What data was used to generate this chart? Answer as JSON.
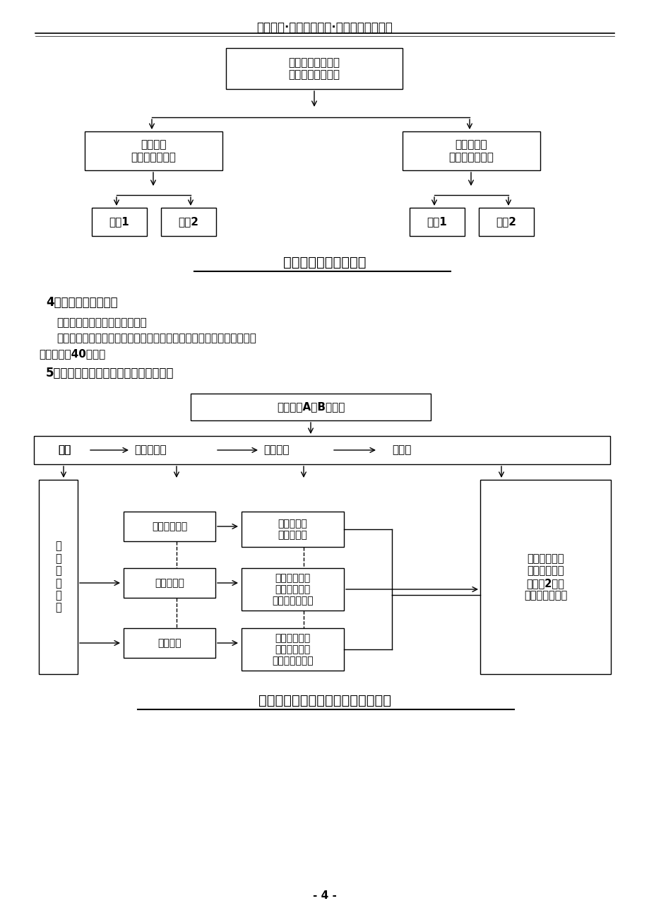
{
  "header_title": "重庆协信·丹枫白露工程·基础工程施工方案",
  "diagram1_title": "平行施工段划分示意图",
  "diagram2_title": "基础工程质量验收检验批划分示意图",
  "section4_title": "4、施工进度控制安排",
  "section4_text1": "本工程主要工序进度安排如下：",
  "section4_text2a": "基础结构施工阶段：施工准备及测量放线在开工前进行；基础工程施工",
  "section4_text2b": "工期控制在40天内。",
  "section5_title": "5、基础分项工程及质量验收检验批划分",
  "page_number": "- 4 -",
  "bg_color": "#ffffff",
  "box1_text": "分为三平行施工段\n组织平行流水施工",
  "box_left_text": "条形基础\n第一平行施工段",
  "box_right_text": "独立柱基础\n第三平行施工段",
  "box_liushui1": "流水1",
  "box_liushui2": "流水2",
  "d2_top_text": "丹枫白露A、B栋工程",
  "d2_fenpei": "分部",
  "d2_zifenpei": "子分部工程",
  "d2_fenxiang": "分项工程",
  "d2_jianyanbei": "检验批",
  "d2_left_vert": "基\n础\n分\n部\n工\n程",
  "d2_right_text": "每个分项工程\n按施工流水段\n划分为2个质\n量验收检验批。",
  "d2_wuzhihu": "无支护土石方",
  "d2_tushifang": "土石方开挖\n土石方回填",
  "d2_zhuduli": "砼独立基础",
  "d2_mubanlv1": "模板分项工程\n钢筋分项工程\n混凝土分项工程",
  "d2_faban": "筏板基础",
  "d2_mubanlv2": "模板分项工程\n钢筋分项工程\n混凝土分项工程"
}
